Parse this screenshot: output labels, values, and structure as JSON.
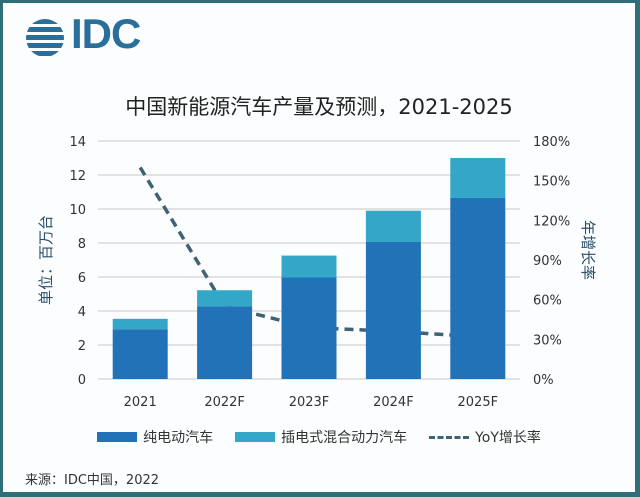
{
  "logo": {
    "text": "IDC"
  },
  "chart_data": {
    "type": "bar",
    "title": "中国新能源汽车产量及预测，2021-2025",
    "categories": [
      "2021",
      "2022F",
      "2023F",
      "2024F",
      "2025F"
    ],
    "stacked": true,
    "series": [
      {
        "name": "纯电动汽车",
        "type": "bar",
        "axis": "left",
        "color": "#2272b7",
        "values": [
          2.93,
          4.27,
          5.97,
          8.08,
          10.65
        ]
      },
      {
        "name": "插电式混合动力汽车",
        "type": "bar",
        "axis": "left",
        "color": "#34a6c8",
        "values": [
          0.61,
          0.95,
          1.29,
          1.82,
          2.35
        ]
      },
      {
        "name": "YoY增长率",
        "type": "line",
        "style": "dashed",
        "axis": "right",
        "color": "#3f6275",
        "values": [
          160,
          55,
          39,
          36,
          32
        ]
      }
    ],
    "ylabel": "单位：百万台",
    "y2label": "年增长率",
    "ylim": [
      0,
      14
    ],
    "y2lim": [
      0,
      180
    ],
    "yticks": [
      "0",
      "2",
      "4",
      "6",
      "8",
      "10",
      "12",
      "14"
    ],
    "y2ticks": [
      "0%",
      "30%",
      "60%",
      "90%",
      "120%",
      "150%",
      "180%"
    ],
    "grid": true,
    "legend": "bottom"
  },
  "source": "来源：IDC中国，2022"
}
